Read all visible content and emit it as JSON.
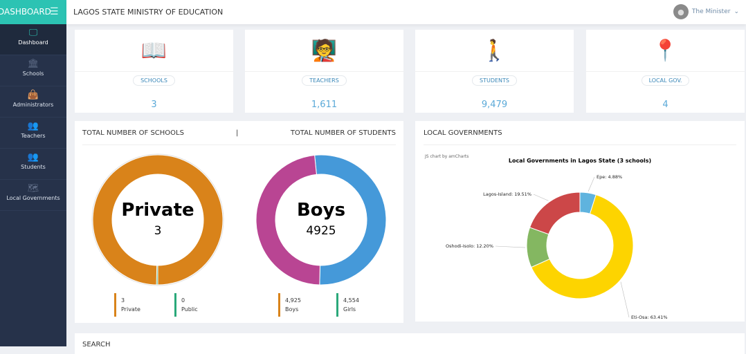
{
  "brand": "DASHBOARD",
  "header": {
    "title": "LAGOS STATE MINISTRY OF EDUCATION",
    "user": "The Minister"
  },
  "sidebar": {
    "items": [
      {
        "label": "Dashboard",
        "icon": "monitor-icon"
      },
      {
        "label": "Schools",
        "icon": "bank-icon"
      },
      {
        "label": "Administrators",
        "icon": "bag-icon"
      },
      {
        "label": "Teachers",
        "icon": "group-icon"
      },
      {
        "label": "Students",
        "icon": "group-icon"
      },
      {
        "label": "Local Governments",
        "icon": "map-icon"
      }
    ]
  },
  "stats": [
    {
      "label": "SCHOOLS",
      "value": "3",
      "icon": "school-book-icon"
    },
    {
      "label": "TEACHERS",
      "value": "1,611",
      "icon": "teachers-icon"
    },
    {
      "label": "STUDENTS",
      "value": "9,479",
      "icon": "students-icon"
    },
    {
      "label": "LOCAL GOV.",
      "value": "4",
      "icon": "map-pins-icon"
    }
  ],
  "panels": {
    "schools_title": "TOTAL NUMBER OF SCHOOLS",
    "separator": "|",
    "students_title": "TOTAL NUMBER OF STUDENTS",
    "lg_title": "LOCAL GOVERNMENTS",
    "search_title": "SEARCH"
  },
  "colors": {
    "accent": "#2cc3b3",
    "sidebar": "#26324a"
  },
  "chart_data": [
    {
      "type": "pie",
      "center_label": "Private",
      "center_value": "3",
      "slices": [
        {
          "name": "Private",
          "value": 3,
          "display": "3",
          "color": "#d9831a"
        },
        {
          "name": "Public",
          "value": 0,
          "display": "0",
          "color": "#2aa87a"
        }
      ]
    },
    {
      "type": "pie",
      "center_label": "Boys",
      "center_value": "4925",
      "slices": [
        {
          "name": "Boys",
          "value": 4925,
          "display": "4,925",
          "color": "#4599d9"
        },
        {
          "name": "Girls",
          "value": 4554,
          "display": "4,554",
          "color": "#b94593"
        }
      ]
    },
    {
      "type": "pie",
      "credit": "JS chart by amCharts",
      "title": "Local Governments in Lagos State (3 schools)",
      "slices": [
        {
          "name": "Epe",
          "value": 4.88,
          "label": "Epe: 4.88%",
          "color": "#5fb3de"
        },
        {
          "name": "Eti-Osa",
          "value": 63.41,
          "label": "Eti-Osa: 63.41%",
          "color": "#fdd400"
        },
        {
          "name": "Oshodi-Isolo",
          "value": 12.2,
          "label": "Oshodi-Isolo: 12.20%",
          "color": "#84b761"
        },
        {
          "name": "Lagos-Island",
          "value": 19.51,
          "label": "Lagos-Island: 19.51%",
          "color": "#cc4748"
        }
      ]
    }
  ]
}
